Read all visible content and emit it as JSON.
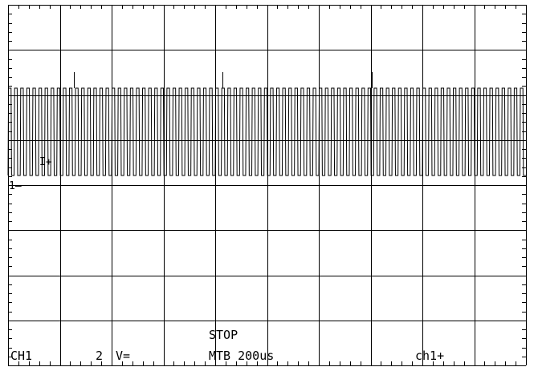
{
  "display": {
    "trace_color": "#000000",
    "grid_color": "#000000",
    "background": "#ffffff",
    "grid_divisions_horizontal": 10,
    "grid_divisions_vertical": 8,
    "minor_ticks_per_division": 5
  },
  "status": {
    "run_state": "STOP"
  },
  "readout": {
    "channel": "CH1",
    "volts_per_div": "2",
    "coupling": "V=",
    "timebase": "MTB 200us",
    "trigger": "ch1+"
  },
  "markers": {
    "ground_marker": "1—",
    "trigger_marker": "I+"
  },
  "waveform": {
    "type": "square",
    "cycles_on_screen": 85
  }
}
